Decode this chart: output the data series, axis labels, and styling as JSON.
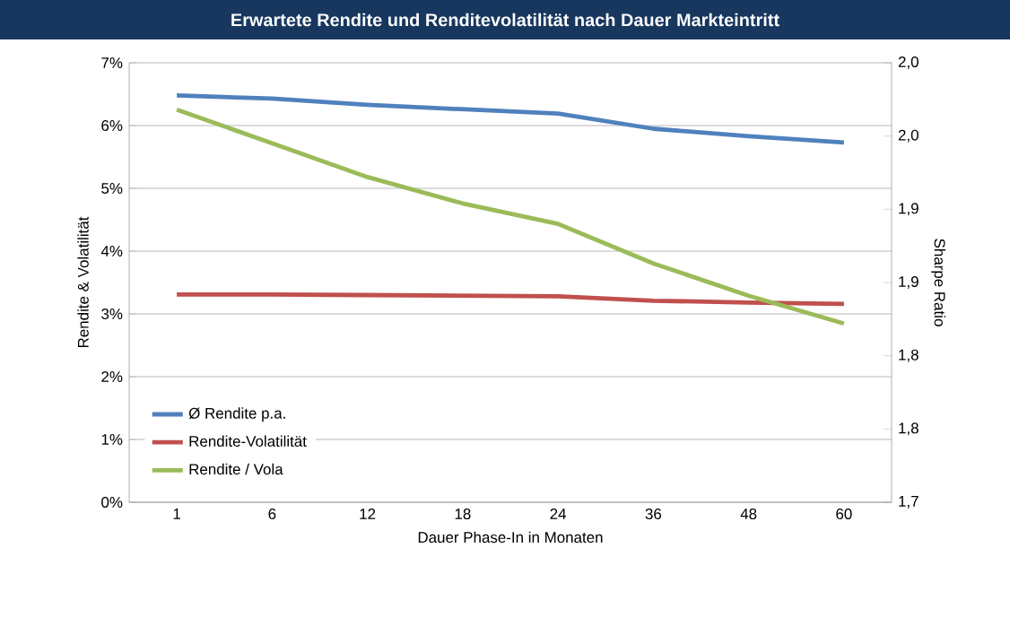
{
  "chart_data": {
    "type": "line",
    "title": "Erwartete Rendite und Renditevolatilität nach Dauer Markteintritt",
    "xlabel": "Dauer Phase-In in Monaten",
    "ylabel": "Rendite & Volatilität",
    "y2label": "Sharpe Ratio",
    "categories": [
      "1",
      "6",
      "12",
      "18",
      "24",
      "36",
      "48",
      "60"
    ],
    "series": [
      {
        "name": "Ø Rendite p.a.",
        "color": "#4f81bd",
        "values": [
          6.48,
          6.43,
          6.33,
          6.26,
          6.19,
          5.95,
          5.83,
          5.73
        ]
      },
      {
        "name": "Rendite-Volatilität",
        "color": "#c0504d",
        "values": [
          3.31,
          3.31,
          3.3,
          3.29,
          3.28,
          3.21,
          3.18,
          3.16
        ]
      },
      {
        "name": "Rendite / Vola",
        "color": "#9bbb59",
        "axis": "y2",
        "values": [
          1.968,
          1.945,
          1.922,
          1.904,
          1.89,
          1.863,
          1.841,
          1.822
        ]
      }
    ],
    "ylim": [
      0,
      7
    ],
    "yticks": [
      {
        "value": 0,
        "label": "0%"
      },
      {
        "value": 1,
        "label": "1%"
      },
      {
        "value": 2,
        "label": "2%"
      },
      {
        "value": 3,
        "label": "3%"
      },
      {
        "value": 4,
        "label": "4%"
      },
      {
        "value": 5,
        "label": "5%"
      },
      {
        "value": 6,
        "label": "6%"
      },
      {
        "value": 7,
        "label": "7%"
      }
    ],
    "y2lim": [
      1.7,
      2.0
    ],
    "y2ticks": [
      {
        "value": 1.7,
        "label": "1,7"
      },
      {
        "value": 1.75,
        "label": "1,8"
      },
      {
        "value": 1.8,
        "label": "1,8"
      },
      {
        "value": 1.85,
        "label": "1,9"
      },
      {
        "value": 1.9,
        "label": "1,9"
      },
      {
        "value": 1.95,
        "label": "2,0"
      },
      {
        "value": 2.0,
        "label": "2,0"
      }
    ],
    "grid": "y",
    "legend": "bottom left",
    "marker": "none",
    "line_style": "solid"
  }
}
